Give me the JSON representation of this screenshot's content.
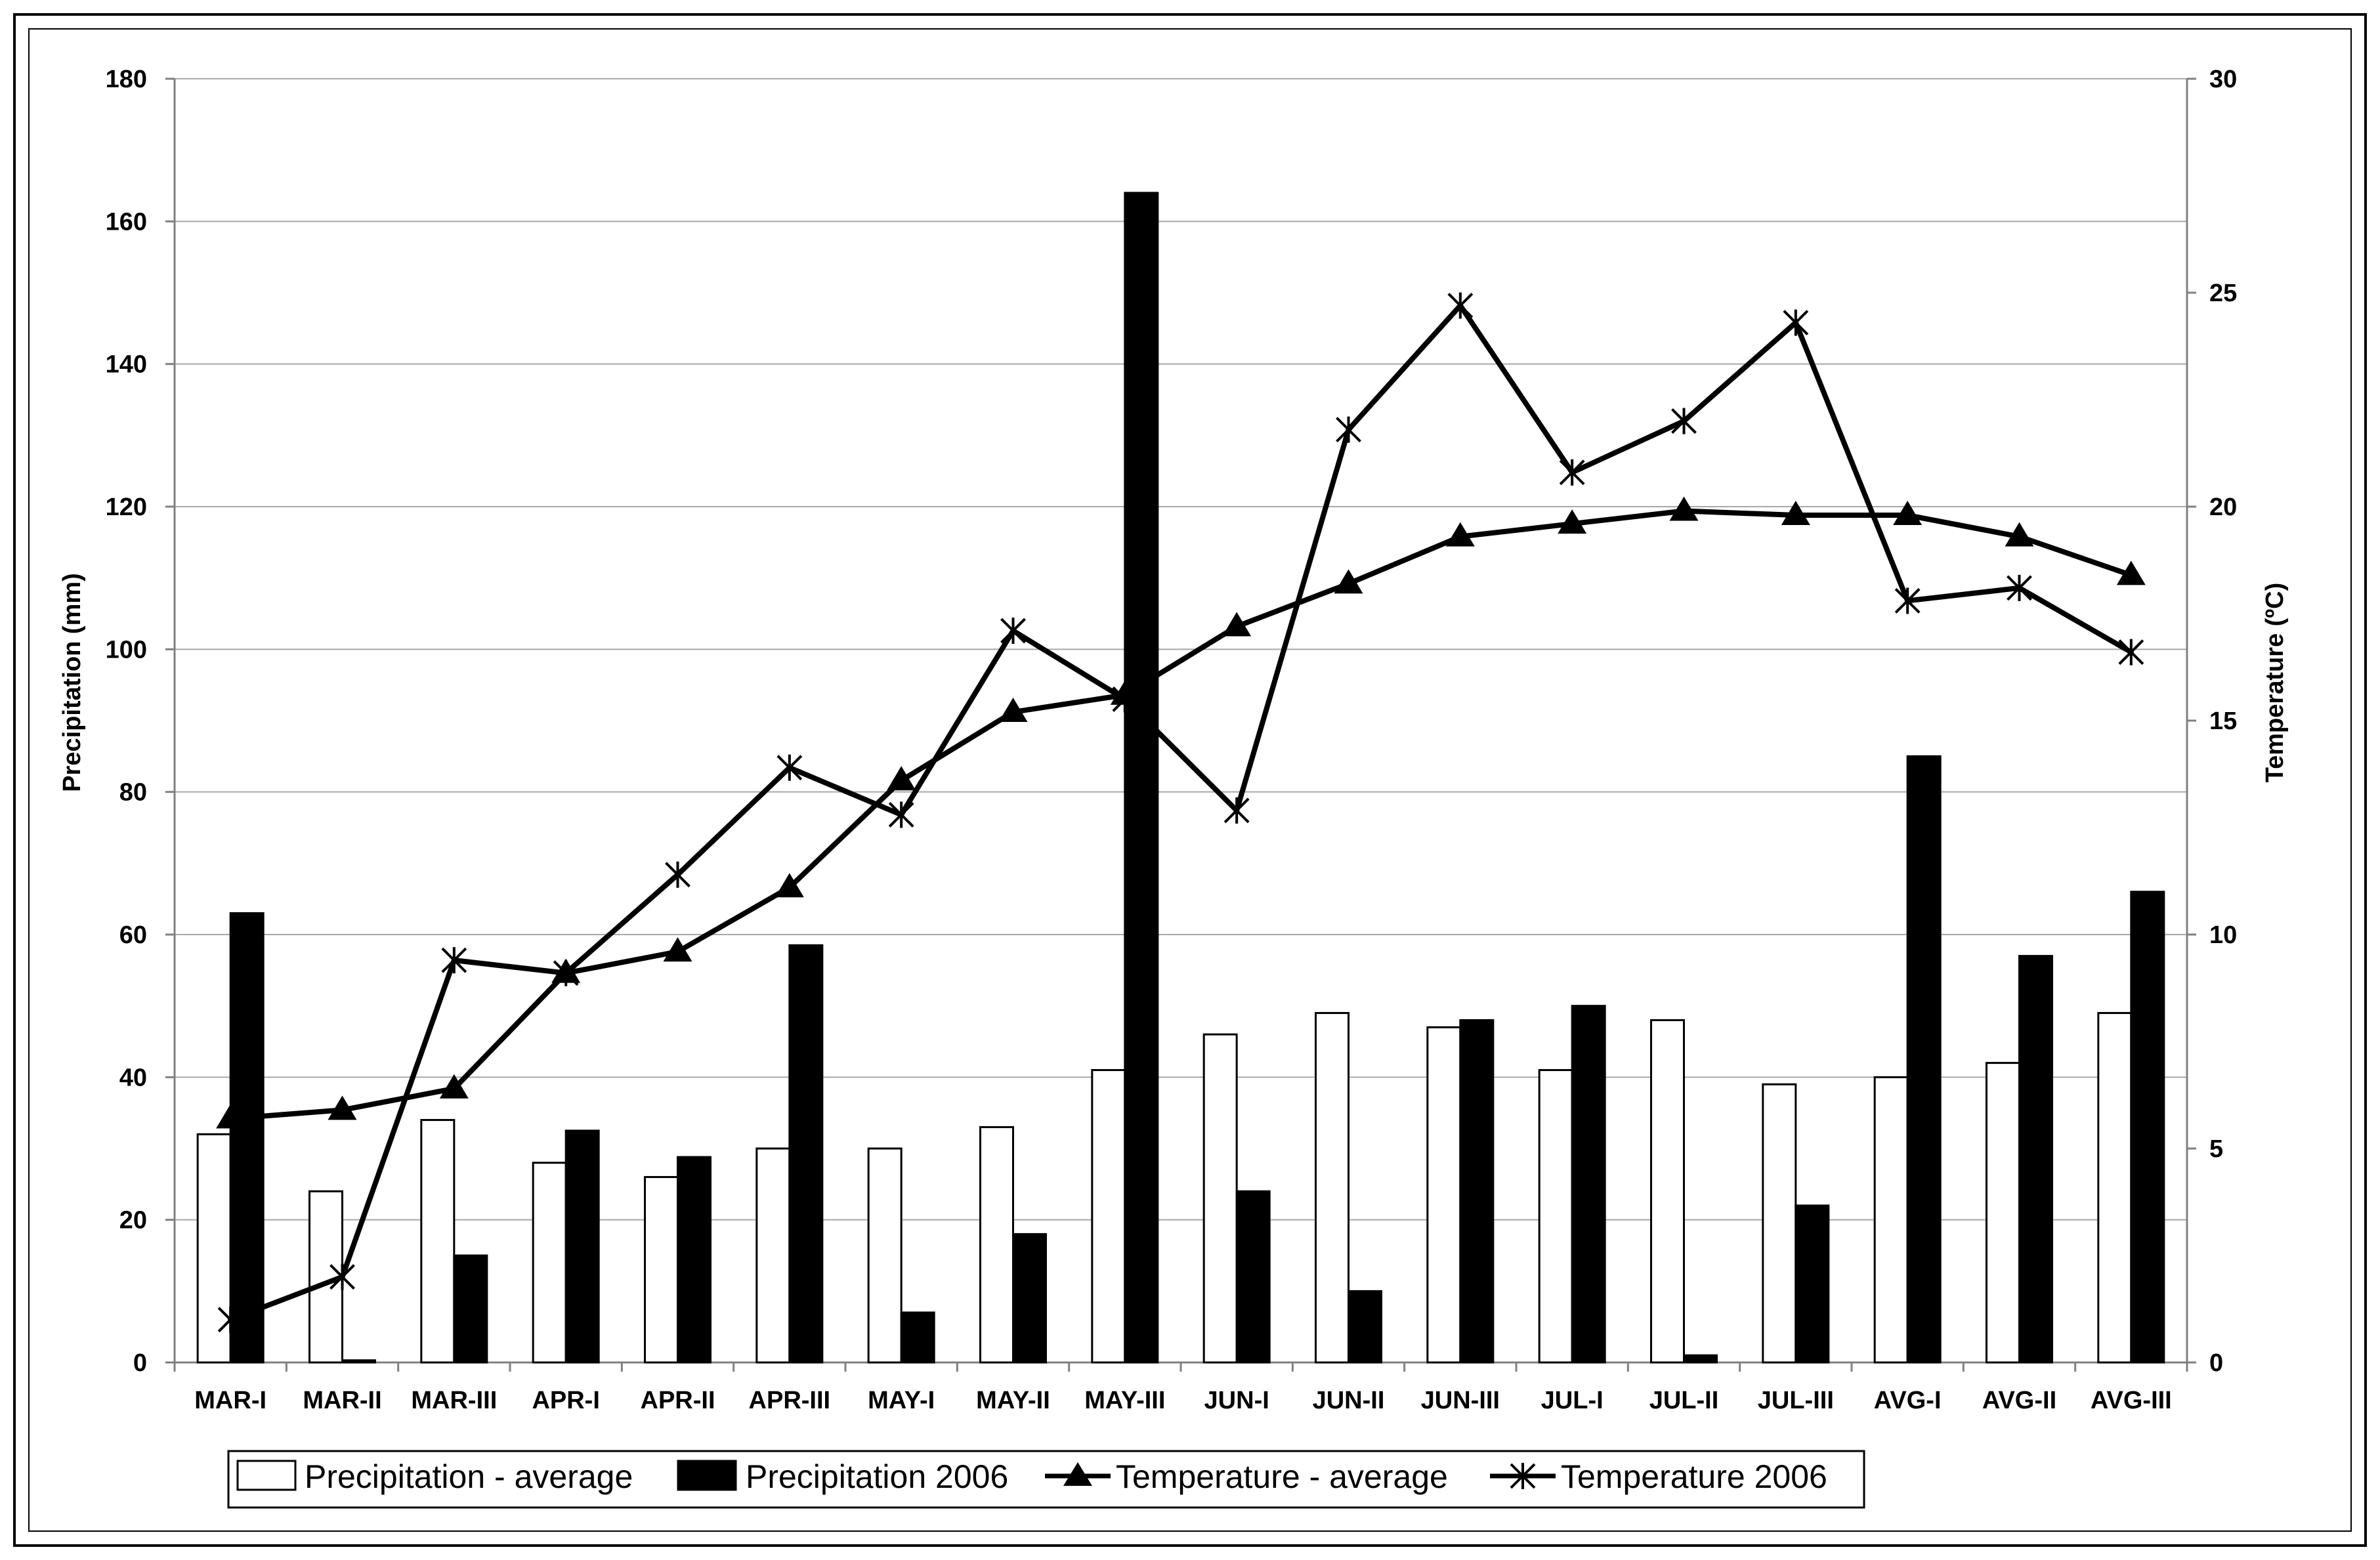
{
  "chart_data": {
    "type": "bar",
    "categories": [
      "MAR-I",
      "MAR-II",
      "MAR-III",
      "APR-I",
      "APR-II",
      "APR-III",
      "MAY-I",
      "MAY-II",
      "MAY-III",
      "JUN-I",
      "JUN-II",
      "JUN-III",
      "JUL-I",
      "JUL-II",
      "JUL-III",
      "AVG-I",
      "AVG-II",
      "AVG-III"
    ],
    "ylabel": "Precipitation (mm)",
    "ylabel_right": "Temperature (ºC)",
    "ylim": [
      0,
      180
    ],
    "yticks": [
      0,
      20,
      40,
      60,
      80,
      100,
      120,
      140,
      160,
      180
    ],
    "ylim_right": [
      0,
      30
    ],
    "yticks_right": [
      0,
      5,
      10,
      15,
      20,
      25,
      30
    ],
    "grid": true,
    "legend_position": "bottom",
    "series": [
      {
        "name": "Precipitation - average",
        "type": "bar",
        "axis": "left",
        "color": "#ffffff",
        "values": [
          32,
          24,
          34,
          28,
          26,
          30,
          30,
          33,
          41,
          46,
          49,
          47,
          41,
          48,
          39,
          40,
          42,
          49
        ]
      },
      {
        "name": "Precipitation 2006",
        "type": "bar",
        "axis": "left",
        "color": "#000000",
        "values": [
          63,
          0.3,
          15,
          32.5,
          28.8,
          58.5,
          7,
          18,
          164,
          24,
          10,
          48,
          50,
          1,
          22,
          85,
          57,
          66
        ]
      },
      {
        "name": "Temperature - average",
        "type": "line",
        "axis": "right",
        "marker": "triangle",
        "color": "#000000",
        "values": [
          5.7,
          5.9,
          6.4,
          9.1,
          9.6,
          11.1,
          13.6,
          15.2,
          15.6,
          17.2,
          18.2,
          19.3,
          19.6,
          19.9,
          19.8,
          19.8,
          19.3,
          18.4
        ]
      },
      {
        "name": "Temperature 2006",
        "type": "line",
        "axis": "right",
        "marker": "asterisk",
        "color": "#000000",
        "values": [
          1.0,
          2.0,
          9.4,
          9.1,
          11.4,
          13.9,
          12.8,
          17.1,
          15.5,
          12.9,
          21.8,
          24.7,
          20.8,
          22.0,
          24.3,
          17.8,
          18.1,
          16.6
        ]
      }
    ]
  }
}
